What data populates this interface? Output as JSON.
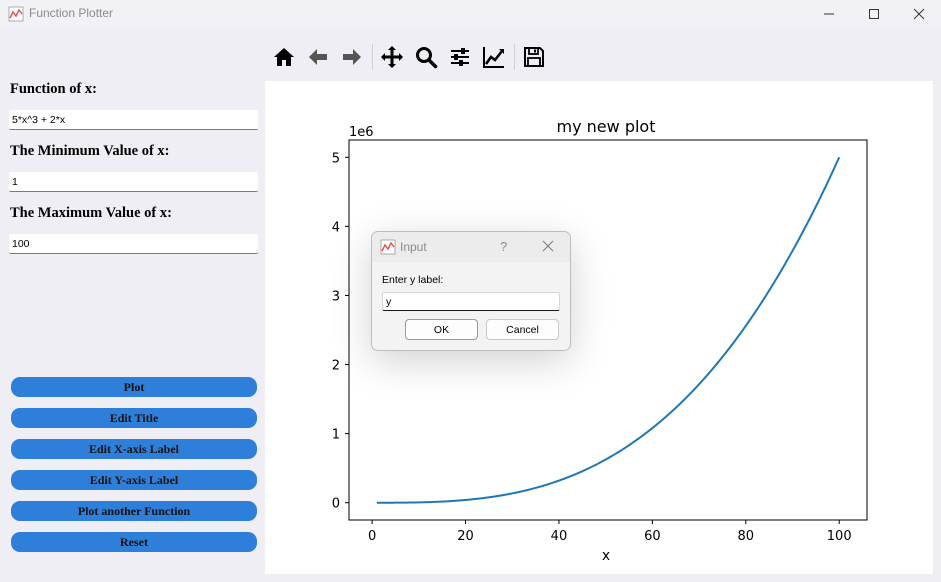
{
  "window": {
    "title": "Function Plotter",
    "icon": "line-chart-icon"
  },
  "form": {
    "function_label": "Function of x:",
    "function_value": "5*x^3 + 2*x",
    "min_label": "The Minimum Value of x:",
    "min_value": "1",
    "max_label": "The Maximum Value of x:",
    "max_value": "100"
  },
  "buttons": {
    "plot": "Plot",
    "edit_title": "Edit Title",
    "edit_xlabel": "Edit X-axis Label",
    "edit_ylabel": "Edit Y-axis Label",
    "plot_another": "Plot another Function",
    "reset": "Reset"
  },
  "toolbar": [
    "home-icon",
    "back-icon",
    "forward-icon",
    "pan-icon",
    "zoom-icon",
    "configure-subplots-icon",
    "edit-axis-icon",
    "save-icon"
  ],
  "colors": {
    "accent_button": "#2e7fd9",
    "line": "#1f77b4"
  },
  "chart_data": {
    "type": "line",
    "title": "my new plot",
    "xlabel": "x",
    "ylabel": "",
    "offset_text": "1e6",
    "function": "5*x^3 + 2*x",
    "xlim": [
      -4.95,
      105.95
    ],
    "ylim": [
      -250000,
      5250000
    ],
    "xticks": [
      0,
      20,
      40,
      60,
      80,
      100
    ],
    "xtick_labels": [
      "0",
      "20",
      "40",
      "60",
      "80",
      "100"
    ],
    "yticks": [
      0,
      1000000,
      2000000,
      3000000,
      4000000,
      5000000
    ],
    "ytick_labels": [
      "0",
      "1",
      "2",
      "3",
      "4",
      "5"
    ],
    "grid": false,
    "series": [
      {
        "x": [
          1,
          10,
          20,
          30,
          40,
          50,
          60,
          70,
          80,
          90,
          100
        ],
        "y": [
          7,
          5020,
          40040,
          135060,
          320080,
          625100,
          1080120,
          1715140,
          2560160,
          3645180,
          5000200
        ]
      }
    ]
  },
  "dialog": {
    "title": "Input",
    "help": "?",
    "prompt": "Enter y label:",
    "value": "y",
    "ok": "OK",
    "cancel": "Cancel"
  }
}
